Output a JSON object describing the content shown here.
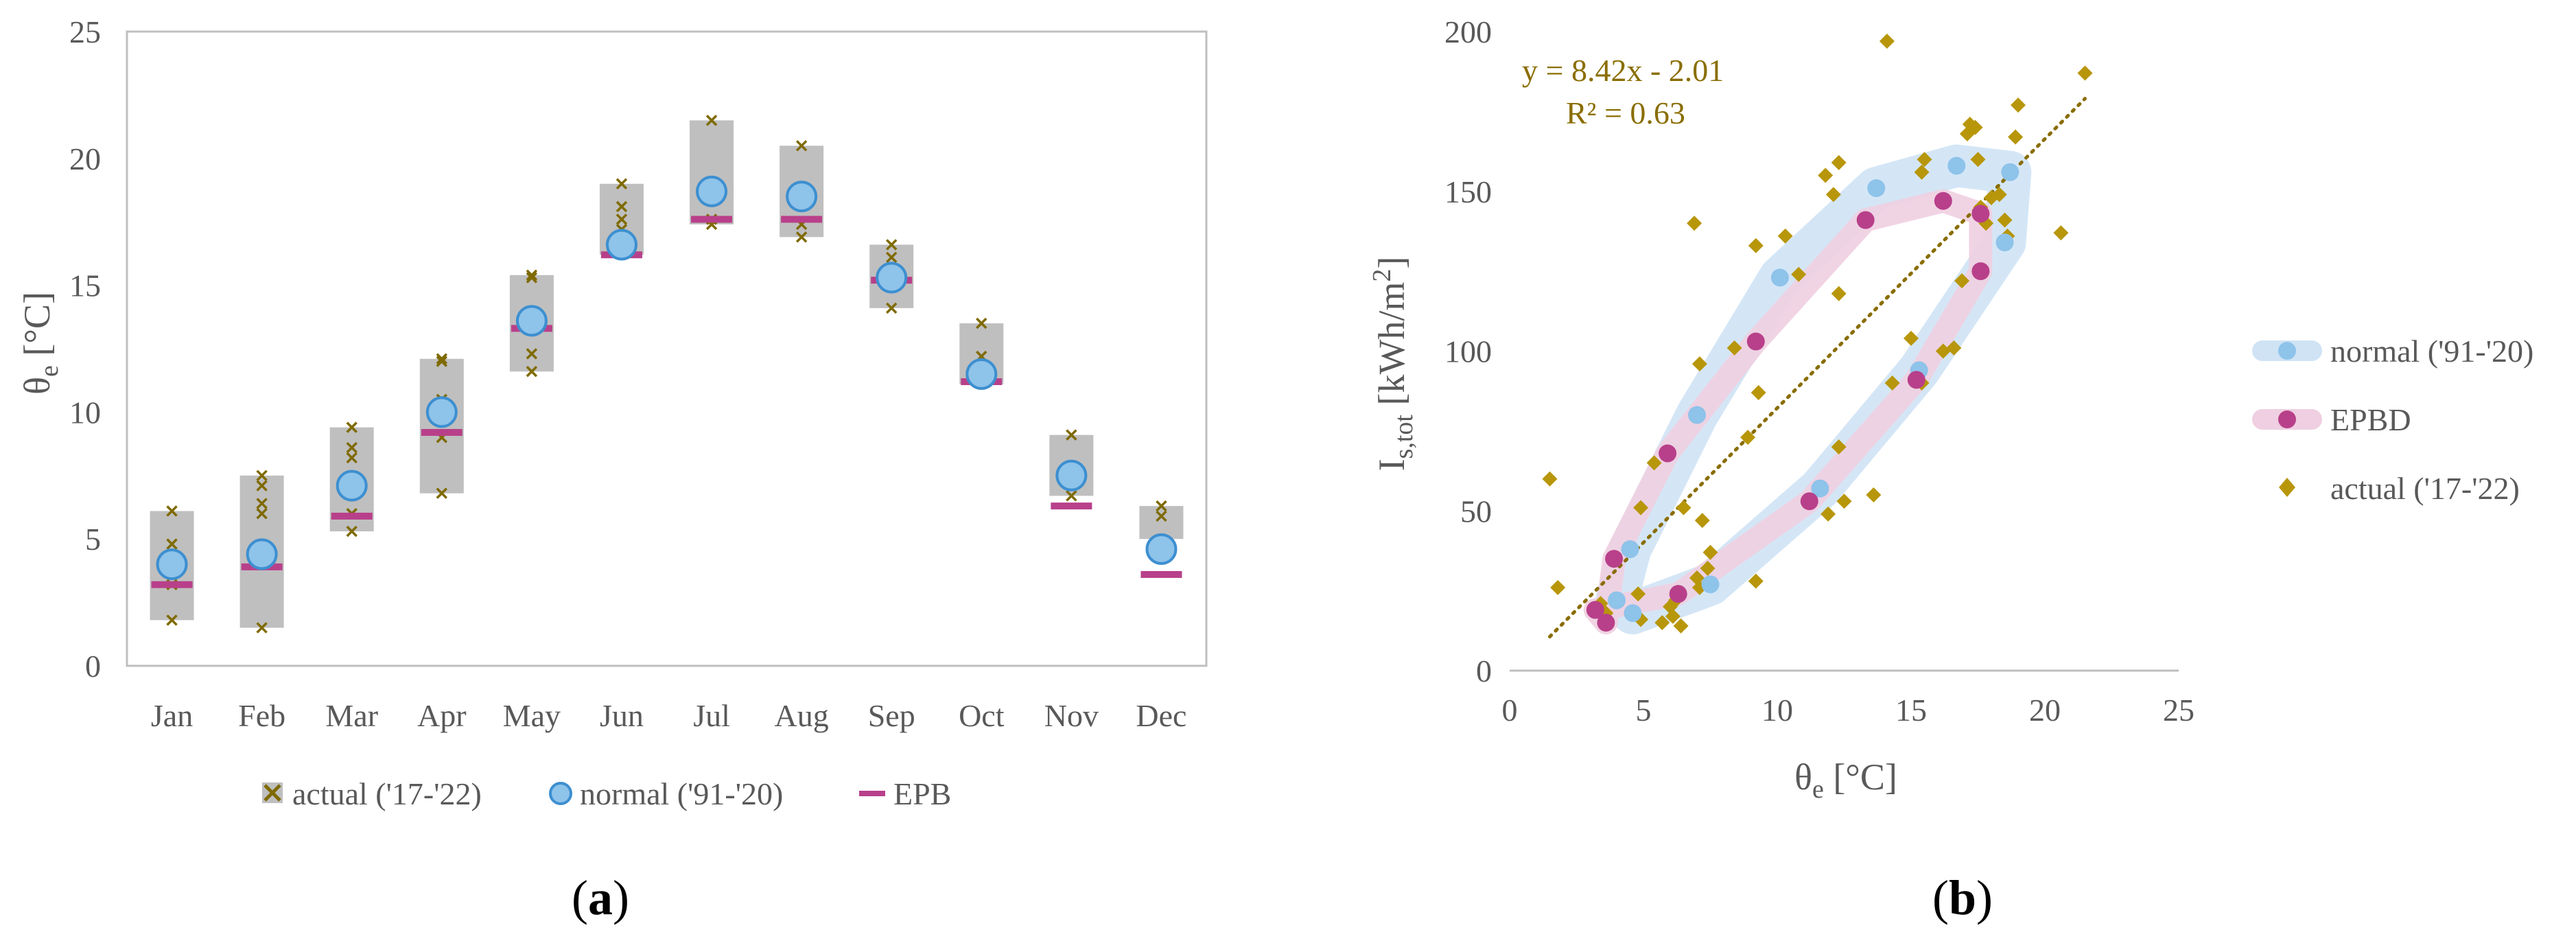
{
  "colors": {
    "actual": "#b8960a",
    "actual_box": "#bfbfbf",
    "actual_marker": "#7f6a00",
    "normal_fill": "#8ec3ea",
    "normal_stroke": "#3d8fd0",
    "normal_band": "#cfe3f5",
    "epb": "#b8408a",
    "epb_band": "#efcfe1",
    "trend": "#8a6d00",
    "axis": "#bfbfbf"
  },
  "chart_data": [
    {
      "type": "box-scatter",
      "panel_label": "a",
      "ylabel_main": "θ",
      "ylabel_sub": "e",
      "ylabel_unit": " [°C]",
      "xlabel": "",
      "ylim": [
        0,
        25
      ],
      "yticks": [
        "0",
        "5",
        "10",
        "15",
        "20",
        "25"
      ],
      "categories": [
        "Jan",
        "Feb",
        "Mar",
        "Apr",
        "May",
        "Jun",
        "Jul",
        "Aug",
        "Sep",
        "Oct",
        "Nov",
        "Dec"
      ],
      "actual_ranges": [
        [
          1.8,
          6.1
        ],
        [
          1.5,
          7.5
        ],
        [
          5.3,
          9.4
        ],
        [
          6.8,
          12.1
        ],
        [
          11.6,
          15.4
        ],
        [
          16.2,
          19.0
        ],
        [
          17.4,
          21.5
        ],
        [
          16.9,
          20.5
        ],
        [
          14.1,
          16.6
        ],
        [
          11.1,
          13.5
        ],
        [
          6.7,
          9.1
        ],
        [
          5.0,
          6.3
        ]
      ],
      "actual_points": [
        [
          1.8,
          3.2,
          4.8,
          6.1
        ],
        [
          1.5,
          4.0,
          6.0,
          6.4,
          7.1,
          7.5
        ],
        [
          5.3,
          6.0,
          8.2,
          8.6,
          9.4
        ],
        [
          6.8,
          9.0,
          10.5,
          12.1,
          12.0
        ],
        [
          11.6,
          12.3,
          13.6,
          15.3,
          15.4
        ],
        [
          16.3,
          17.2,
          17.6,
          18.1,
          19.0
        ],
        [
          17.4,
          17.6,
          21.5
        ],
        [
          16.9,
          17.4,
          20.5
        ],
        [
          14.1,
          15.0,
          16.1,
          16.6
        ],
        [
          11.3,
          12.2,
          13.5
        ],
        [
          6.7,
          9.1
        ],
        [
          5.9,
          6.3
        ]
      ],
      "series": [
        {
          "name": "normal ('91-'20)",
          "values": [
            4.0,
            4.4,
            7.1,
            10.0,
            13.6,
            16.6,
            18.7,
            18.5,
            15.3,
            11.5,
            7.5,
            4.6
          ]
        },
        {
          "name": "EPB",
          "values": [
            3.2,
            3.9,
            5.9,
            9.2,
            13.3,
            16.2,
            17.6,
            17.6,
            15.2,
            11.2,
            6.3,
            3.6
          ]
        }
      ],
      "legend": [
        "actual ('17-'22)",
        "normal ('91-'20)",
        "EPB"
      ],
      "legend_position": "bottom"
    },
    {
      "type": "scatter",
      "panel_label": "b",
      "xlabel_main": "θ",
      "xlabel_sub": "e",
      "xlabel_unit": " [°C]",
      "ylabel_main": "I",
      "ylabel_sub": "s,tot",
      "ylabel_unit": " [kWh/m",
      "ylabel_sup": "2",
      "ylabel_close": "]",
      "xlim": [
        0,
        25
      ],
      "ylim": [
        0,
        200
      ],
      "xticks": [
        "0",
        "5",
        "10",
        "15",
        "20",
        "25"
      ],
      "yticks": [
        "0",
        "50",
        "100",
        "150",
        "200"
      ],
      "trendline": {
        "equation": "y = 8.42x - 2.01",
        "r2": "R² = 0.63",
        "slope": 8.42,
        "intercept": -2.01,
        "x_range": [
          1.5,
          21.5
        ]
      },
      "series": [
        {
          "name": "normal ('91-'20)",
          "points": [
            [
              4.0,
              22
            ],
            [
              4.5,
              38
            ],
            [
              7.0,
              80
            ],
            [
              10.1,
              123
            ],
            [
              13.7,
              151
            ],
            [
              16.7,
              158
            ],
            [
              18.7,
              156
            ],
            [
              18.5,
              134
            ],
            [
              15.3,
              94
            ],
            [
              11.6,
              57
            ],
            [
              7.5,
              27
            ],
            [
              4.6,
              18
            ]
          ]
        },
        {
          "name": "EPBD",
          "points": [
            [
              3.6,
              15
            ],
            [
              3.9,
              35
            ],
            [
              5.9,
              68
            ],
            [
              9.2,
              103
            ],
            [
              13.3,
              141
            ],
            [
              16.2,
              147
            ],
            [
              17.6,
              143
            ],
            [
              17.6,
              125
            ],
            [
              15.2,
              91
            ],
            [
              11.2,
              53
            ],
            [
              6.3,
              24
            ],
            [
              3.2,
              19
            ]
          ]
        },
        {
          "name": "actual ('17-'22)",
          "points": [
            [
              1.5,
              60
            ],
            [
              1.8,
              26
            ],
            [
              3.4,
              21
            ],
            [
              3.6,
              18
            ],
            [
              4.8,
              24
            ],
            [
              4.9,
              16
            ],
            [
              4.9,
              51
            ],
            [
              5.4,
              65
            ],
            [
              5.7,
              15
            ],
            [
              6.0,
              20
            ],
            [
              6.1,
              17
            ],
            [
              6.2,
              22
            ],
            [
              6.4,
              14
            ],
            [
              6.5,
              51
            ],
            [
              6.9,
              140
            ],
            [
              7.0,
              29
            ],
            [
              7.1,
              96
            ],
            [
              7.2,
              47
            ],
            [
              7.4,
              32
            ],
            [
              7.5,
              37
            ],
            [
              7.1,
              26
            ],
            [
              8.4,
              101
            ],
            [
              8.9,
              73
            ],
            [
              9.2,
              133
            ],
            [
              9.2,
              28
            ],
            [
              9.3,
              87
            ],
            [
              10.3,
              136
            ],
            [
              10.8,
              124
            ],
            [
              11.8,
              155
            ],
            [
              11.9,
              49
            ],
            [
              12.1,
              149
            ],
            [
              12.3,
              159
            ],
            [
              12.3,
              118
            ],
            [
              12.3,
              70
            ],
            [
              12.5,
              53
            ],
            [
              13.6,
              55
            ],
            [
              14.1,
              197
            ],
            [
              14.3,
              90
            ],
            [
              15.0,
              104
            ],
            [
              15.4,
              90
            ],
            [
              15.4,
              156
            ],
            [
              15.5,
              160
            ],
            [
              16.2,
              100
            ],
            [
              16.6,
              101
            ],
            [
              16.9,
              122
            ],
            [
              17.1,
              168
            ],
            [
              17.2,
              171
            ],
            [
              17.4,
              170
            ],
            [
              17.5,
              160
            ],
            [
              17.6,
              145
            ],
            [
              17.8,
              140
            ],
            [
              18.0,
              148
            ],
            [
              18.3,
              149
            ],
            [
              18.5,
              141
            ],
            [
              18.6,
              136
            ],
            [
              18.9,
              167
            ],
            [
              19.0,
              177
            ],
            [
              20.6,
              137
            ],
            [
              21.5,
              187
            ]
          ]
        }
      ],
      "legend": [
        "normal ('91-'20)",
        "EPBD",
        "actual ('17-'22)"
      ],
      "legend_position": "right"
    }
  ]
}
